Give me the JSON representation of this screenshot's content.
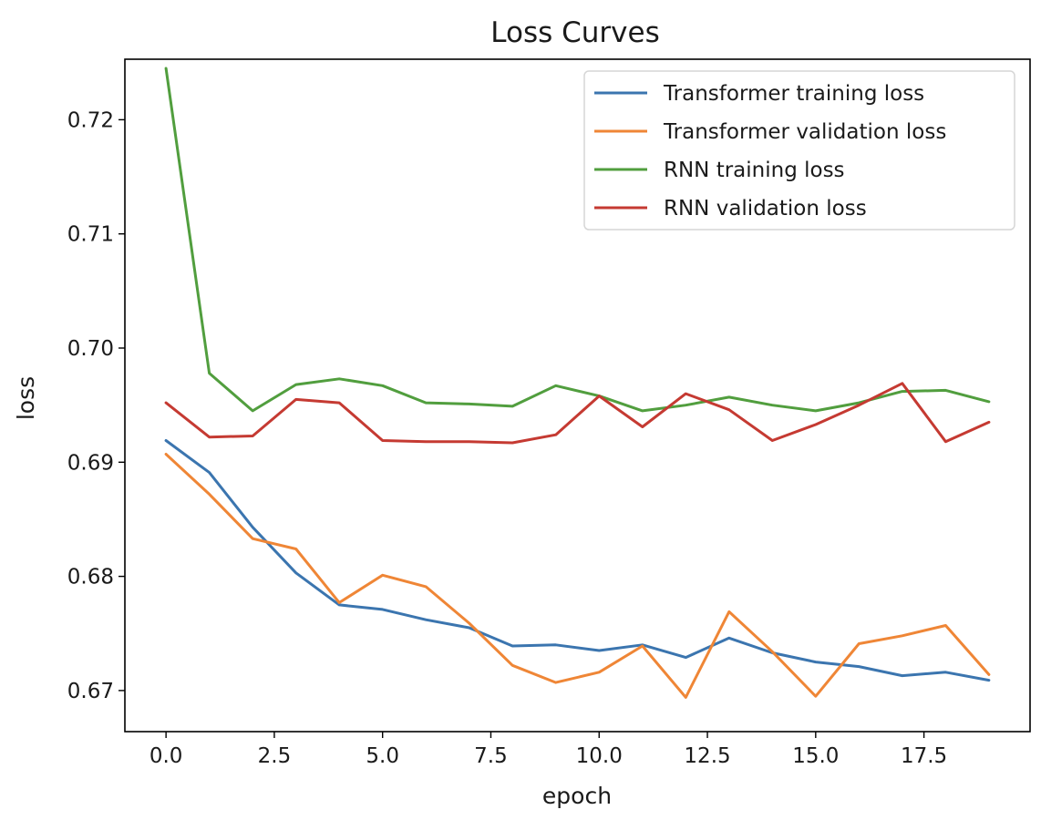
{
  "chart_data": {
    "type": "line",
    "title": "Loss Curves",
    "xlabel": "epoch",
    "ylabel": "loss",
    "xlim": [
      -0.95,
      19.95
    ],
    "ylim": [
      0.6664,
      0.7253
    ],
    "x_ticks": [
      0.0,
      2.5,
      5.0,
      7.5,
      10.0,
      12.5,
      15.0,
      17.5
    ],
    "x_tick_labels": [
      "0.0",
      "2.5",
      "5.0",
      "7.5",
      "10.0",
      "12.5",
      "15.0",
      "17.5"
    ],
    "y_ticks": [
      0.67,
      0.68,
      0.69,
      0.7,
      0.71,
      0.72
    ],
    "y_tick_labels": [
      "0.67",
      "0.68",
      "0.69",
      "0.70",
      "0.71",
      "0.72"
    ],
    "grid": false,
    "legend_position": "top-right",
    "x": [
      0,
      1,
      2,
      3,
      4,
      5,
      6,
      7,
      8,
      9,
      10,
      11,
      12,
      13,
      14,
      15,
      16,
      17,
      18,
      19
    ],
    "series": [
      {
        "name": "Transformer training loss",
        "color": "#3b75af",
        "values": [
          0.6919,
          0.6891,
          0.6843,
          0.6803,
          0.6775,
          0.6771,
          0.6762,
          0.6755,
          0.6739,
          0.674,
          0.6735,
          0.674,
          0.6729,
          0.6746,
          0.6733,
          0.6725,
          0.6721,
          0.6713,
          0.6716,
          0.6709
        ]
      },
      {
        "name": "Transformer validation loss",
        "color": "#ef8636",
        "values": [
          0.6907,
          0.6872,
          0.6833,
          0.6824,
          0.6777,
          0.6801,
          0.6791,
          0.6759,
          0.6722,
          0.6707,
          0.6716,
          0.6739,
          0.6694,
          0.6769,
          0.6734,
          0.6695,
          0.6741,
          0.6748,
          0.6757,
          0.6714
        ]
      },
      {
        "name": "RNN training loss",
        "color": "#519e3e",
        "values": [
          0.7245,
          0.6978,
          0.6945,
          0.6968,
          0.6973,
          0.6967,
          0.6952,
          0.6951,
          0.6949,
          0.6967,
          0.6958,
          0.6945,
          0.695,
          0.6957,
          0.695,
          0.6945,
          0.6952,
          0.6962,
          0.6963,
          0.6953
        ]
      },
      {
        "name": "RNN validation loss",
        "color": "#c53a32",
        "values": [
          0.6952,
          0.6922,
          0.6923,
          0.6955,
          0.6952,
          0.6919,
          0.6918,
          0.6918,
          0.6917,
          0.6924,
          0.6958,
          0.6931,
          0.696,
          0.6946,
          0.6919,
          0.6933,
          0.695,
          0.6969,
          0.6918,
          0.6935
        ]
      }
    ]
  }
}
